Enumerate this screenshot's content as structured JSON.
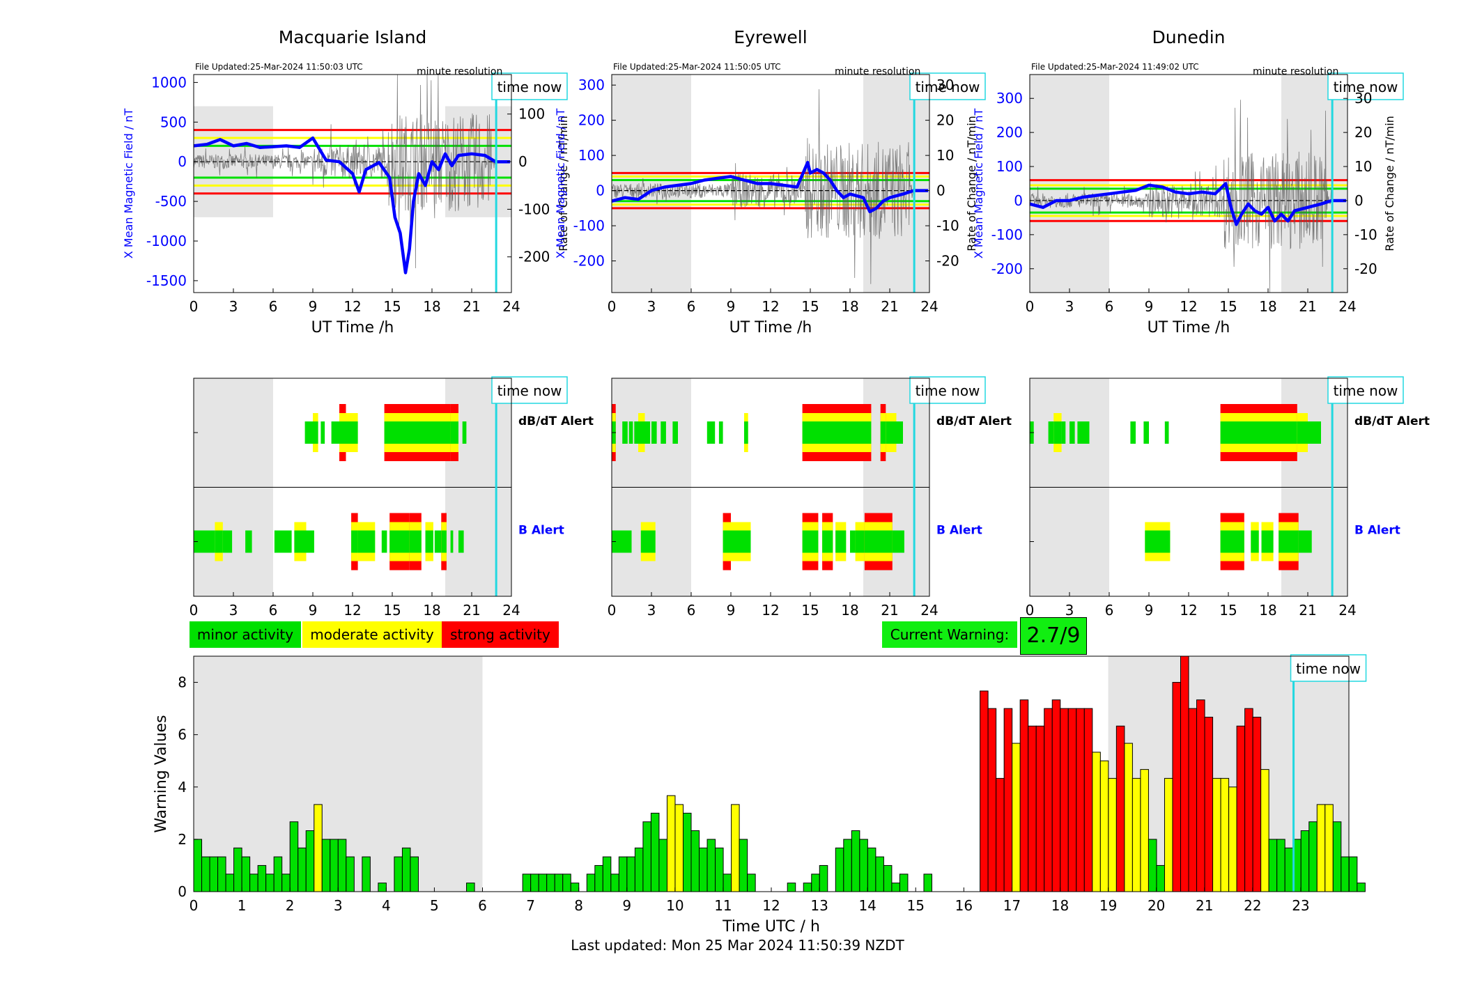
{
  "colors": {
    "minor": "#00e000",
    "moderate": "#ffff00",
    "strong": "#ff0000",
    "night": "#e5e5e5",
    "x_axis": "#0000ff",
    "time_now": "#22d8e0",
    "warning_box": "#11ee11"
  },
  "legend": {
    "minor": "minor activity",
    "moderate": "moderate activity",
    "strong": "strong activity"
  },
  "current_warning": {
    "label": "Current Warning:",
    "value": "2.7/9"
  },
  "footer": "Last updated: Mon 25 Mar 2024 11:50:39 NZDT",
  "chart_data": [
    {
      "type": "line",
      "station": "Macquarie Island",
      "file_updated": "File Updated:25-Mar-2024 11:50:03 UTC",
      "resolution": "minute resolution",
      "time_now_label": "time now",
      "time_now_hour": 22.85,
      "xlabel": "UT Time /h",
      "ylabel_left": "X Mean Magnetic Field / nT",
      "ylabel_right": "Rate of Change / nT/min",
      "xlim": [
        0,
        24
      ],
      "ylim_left": [
        -1650,
        1100
      ],
      "ylim_right": [
        -275,
        183
      ],
      "xticks": [
        0,
        3,
        6,
        9,
        12,
        15,
        18,
        21,
        24
      ],
      "yticks_left": [
        -1500,
        -1000,
        -500,
        0,
        500,
        1000
      ],
      "yticks_right": [
        -200,
        -100,
        0,
        100
      ],
      "night_left": [
        0,
        6
      ],
      "night_right": [
        19,
        24
      ],
      "night_y": [
        -700,
        700
      ],
      "thresholds": [
        {
          "level": "strong",
          "value": 400
        },
        {
          "level": "moderate",
          "value": 300
        },
        {
          "level": "minor",
          "value": 200
        }
      ],
      "x_mean_hourly_x": [
        0,
        1,
        2,
        3,
        4,
        5,
        6,
        7,
        8,
        9,
        10,
        11,
        12,
        12.5,
        13,
        14,
        14.8,
        15.2,
        15.6,
        16,
        16.3,
        16.6,
        17,
        17.5,
        18,
        18.5,
        19,
        19.5,
        20,
        21,
        22,
        22.8,
        23.9
      ],
      "x_mean_hourly_y": [
        200,
        220,
        280,
        200,
        230,
        180,
        190,
        200,
        180,
        300,
        20,
        0,
        -150,
        -380,
        -100,
        -10,
        -200,
        -700,
        -900,
        -1400,
        -1100,
        -500,
        -150,
        -300,
        0,
        -100,
        100,
        -50,
        80,
        100,
        80,
        0,
        0
      ]
    },
    {
      "type": "line",
      "station": "Eyrewell",
      "file_updated": "File Updated:25-Mar-2024 11:50:05 UTC",
      "resolution": "minute resolution",
      "time_now_label": "time now",
      "time_now_hour": 22.85,
      "xlabel": "UT Time /h",
      "ylabel_left": "X Mean Magnetic Field / nT",
      "ylabel_right": "Rate of Change / nT/min",
      "xlim": [
        0,
        24
      ],
      "ylim_left": [
        -290,
        330
      ],
      "ylim_right": [
        -29,
        33
      ],
      "xticks": [
        0,
        3,
        6,
        9,
        12,
        15,
        18,
        21,
        24
      ],
      "yticks_left": [
        -200,
        -100,
        0,
        100,
        200,
        300
      ],
      "yticks_right": [
        -20,
        -10,
        0,
        10,
        20,
        30
      ],
      "night_left": [
        0,
        6
      ],
      "night_right": [
        19,
        24
      ],
      "night_y": [
        -290,
        330
      ],
      "thresholds": [
        {
          "level": "strong",
          "value": 50
        },
        {
          "level": "moderate",
          "value": 40
        },
        {
          "level": "minor",
          "value": 30
        }
      ],
      "x_mean_hourly_x": [
        0,
        1,
        2,
        3,
        4,
        5,
        6,
        7,
        8,
        9,
        10,
        11,
        12,
        13,
        14,
        14.8,
        15,
        15.5,
        16,
        16.5,
        17,
        17.5,
        18,
        19,
        19.5,
        20,
        20.5,
        21,
        22,
        22.8,
        23.9
      ],
      "x_mean_hourly_y": [
        -30,
        -20,
        -25,
        0,
        10,
        15,
        20,
        30,
        35,
        40,
        30,
        20,
        20,
        15,
        10,
        80,
        50,
        60,
        50,
        30,
        0,
        -20,
        -10,
        -20,
        -60,
        -50,
        -30,
        -20,
        -10,
        0,
        0
      ]
    },
    {
      "type": "line",
      "station": "Dunedin",
      "file_updated": "File Updated:25-Mar-2024 11:49:02 UTC",
      "resolution": "minute resolution",
      "time_now_label": "time now",
      "time_now_hour": 22.85,
      "xlabel": "UT Time /h",
      "ylabel_left": "X Mean Magnetic Field / nT",
      "ylabel_right": "Rate of Change / nT/min",
      "xlim": [
        0,
        24
      ],
      "ylim_left": [
        -270,
        370
      ],
      "ylim_right": [
        -27,
        37
      ],
      "xticks": [
        0,
        3,
        6,
        9,
        12,
        15,
        18,
        21,
        24
      ],
      "yticks_left": [
        -200,
        -100,
        0,
        100,
        200,
        300
      ],
      "yticks_right": [
        -20,
        -10,
        0,
        10,
        20,
        30
      ],
      "night_left": [
        0,
        6
      ],
      "night_right": [
        19,
        24
      ],
      "night_y": [
        -270,
        370
      ],
      "thresholds": [
        {
          "level": "strong",
          "value": 60
        },
        {
          "level": "moderate",
          "value": 45
        },
        {
          "level": "minor",
          "value": 35
        }
      ],
      "x_mean_hourly_x": [
        0,
        1,
        2,
        3,
        4,
        5,
        6,
        7,
        8,
        9,
        10,
        11,
        12,
        13,
        14,
        14.8,
        15.2,
        15.6,
        16,
        16.5,
        17,
        17.5,
        18,
        18.5,
        19,
        19.5,
        20,
        21,
        22,
        22.8,
        23.9
      ],
      "x_mean_hourly_y": [
        -10,
        -20,
        0,
        0,
        10,
        15,
        20,
        25,
        30,
        45,
        40,
        25,
        20,
        25,
        20,
        50,
        -20,
        -70,
        -40,
        -10,
        -30,
        -40,
        -20,
        -60,
        -40,
        -60,
        -30,
        -20,
        -10,
        0,
        0
      ]
    },
    {
      "type": "alert-timeline",
      "station": "Macquarie Island",
      "rows": [
        "dB/dT Alert",
        "B Alert"
      ],
      "time_now_label": "time now",
      "time_now_hour": 22.85,
      "xlim": [
        0,
        24
      ],
      "xticks": [
        0,
        3,
        6,
        9,
        12,
        15,
        18,
        21,
        24
      ],
      "night_left": [
        0,
        6
      ],
      "night_right": [
        19,
        24
      ],
      "dbdt_segments": [
        [
          8.4,
          9.0,
          1
        ],
        [
          9.0,
          9.4,
          2
        ],
        [
          9.6,
          9.9,
          1
        ],
        [
          10.4,
          11.0,
          1
        ],
        [
          11.0,
          11.5,
          3
        ],
        [
          11.5,
          12.4,
          2
        ],
        [
          14.4,
          19.4,
          3
        ],
        [
          19.4,
          20.0,
          3
        ],
        [
          20.3,
          20.6,
          1
        ]
      ],
      "b_segments": [
        [
          0,
          1.6,
          1
        ],
        [
          1.6,
          2.2,
          2
        ],
        [
          2.2,
          2.9,
          1
        ],
        [
          3.9,
          4.4,
          1
        ],
        [
          6.1,
          7.4,
          1
        ],
        [
          7.6,
          8.5,
          2
        ],
        [
          8.5,
          9.1,
          1
        ],
        [
          11.9,
          12.4,
          3
        ],
        [
          12.4,
          13.7,
          2
        ],
        [
          14.2,
          14.6,
          1
        ],
        [
          14.8,
          16.3,
          3
        ],
        [
          16.3,
          17.2,
          3
        ],
        [
          17.5,
          18.1,
          2
        ],
        [
          18.2,
          18.7,
          1
        ],
        [
          18.7,
          19.1,
          3
        ],
        [
          19.4,
          19.6,
          1
        ],
        [
          20.0,
          20.4,
          1
        ]
      ]
    },
    {
      "type": "alert-timeline",
      "station": "Eyrewell",
      "rows": [
        "dB/dT Alert",
        "B Alert"
      ],
      "time_now_label": "time now",
      "time_now_hour": 22.85,
      "xlim": [
        0,
        24
      ],
      "xticks": [
        0,
        3,
        6,
        9,
        12,
        15,
        18,
        21,
        24
      ],
      "night_left": [
        0,
        6
      ],
      "night_right": [
        19,
        24
      ],
      "dbdt_segments": [
        [
          0,
          0.3,
          3
        ],
        [
          0.8,
          1.2,
          1
        ],
        [
          1.3,
          1.6,
          1
        ],
        [
          1.7,
          2.0,
          1
        ],
        [
          2.0,
          2.5,
          2
        ],
        [
          2.5,
          2.9,
          1
        ],
        [
          3.0,
          3.4,
          1
        ],
        [
          3.7,
          4.1,
          1
        ],
        [
          4.6,
          5.0,
          1
        ],
        [
          7.2,
          7.8,
          1
        ],
        [
          8.1,
          8.4,
          1
        ],
        [
          10.0,
          10.3,
          2
        ],
        [
          14.4,
          19.6,
          3
        ],
        [
          20.3,
          20.7,
          3
        ],
        [
          20.7,
          21.5,
          2
        ],
        [
          21.5,
          22.0,
          1
        ]
      ],
      "b_segments": [
        [
          0,
          1.5,
          1
        ],
        [
          2.2,
          3.3,
          2
        ],
        [
          8.4,
          9.0,
          3
        ],
        [
          9.0,
          10.5,
          2
        ],
        [
          14.4,
          15.6,
          3
        ],
        [
          15.9,
          16.7,
          3
        ],
        [
          16.9,
          17.7,
          2
        ],
        [
          18.0,
          18.4,
          1
        ],
        [
          18.4,
          19.1,
          2
        ],
        [
          19.1,
          21.2,
          3
        ],
        [
          21.2,
          22.1,
          1
        ]
      ]
    },
    {
      "type": "alert-timeline",
      "station": "Dunedin",
      "rows": [
        "dB/dT Alert",
        "B Alert"
      ],
      "time_now_label": "time now",
      "time_now_hour": 22.85,
      "xlim": [
        0,
        24
      ],
      "xticks": [
        0,
        3,
        6,
        9,
        12,
        15,
        18,
        21,
        24
      ],
      "night_left": [
        0,
        6
      ],
      "night_right": [
        19,
        24
      ],
      "dbdt_segments": [
        [
          0,
          0.3,
          1
        ],
        [
          1.4,
          1.8,
          1
        ],
        [
          1.8,
          2.4,
          2
        ],
        [
          2.4,
          2.7,
          1
        ],
        [
          3.0,
          3.4,
          1
        ],
        [
          3.6,
          4.5,
          1
        ],
        [
          7.6,
          8.0,
          1
        ],
        [
          8.6,
          9.0,
          1
        ],
        [
          10.2,
          10.5,
          1
        ],
        [
          14.4,
          20.2,
          3
        ],
        [
          20.2,
          21.0,
          2
        ],
        [
          21.0,
          22.0,
          1
        ]
      ],
      "b_segments": [
        [
          8.7,
          10.6,
          2
        ],
        [
          14.4,
          16.2,
          3
        ],
        [
          16.7,
          17.3,
          2
        ],
        [
          17.5,
          18.4,
          2
        ],
        [
          18.8,
          20.3,
          3
        ],
        [
          20.3,
          21.3,
          1
        ]
      ]
    },
    {
      "type": "bar",
      "ylabel": "Warning Values",
      "xlabel": "Time UTC / h",
      "time_now_label": "time now",
      "time_now_hour": 22.85,
      "xlim": [
        0,
        24
      ],
      "ylim": [
        0,
        9
      ],
      "xticks": [
        0,
        1,
        2,
        3,
        4,
        5,
        6,
        7,
        8,
        9,
        10,
        11,
        12,
        13,
        14,
        15,
        16,
        17,
        18,
        19,
        20,
        21,
        22,
        23
      ],
      "yticks": [
        0,
        2,
        4,
        6,
        8
      ],
      "night_left": [
        0,
        6
      ],
      "night_right": [
        19,
        24
      ],
      "bin_hours": 0.1667,
      "values": [
        2.0,
        1.33,
        1.33,
        1.33,
        0.67,
        1.67,
        1.33,
        0.67,
        1.0,
        0.67,
        1.33,
        0.67,
        2.67,
        1.67,
        2.33,
        3.33,
        2.0,
        2.0,
        2.0,
        1.33,
        0,
        1.33,
        0,
        0.33,
        0,
        1.33,
        1.67,
        1.33,
        0,
        0,
        0,
        0,
        0,
        0,
        0.33,
        0,
        0,
        0,
        0,
        0,
        0,
        0.67,
        0.67,
        0.67,
        0.67,
        0.67,
        0.67,
        0.33,
        0,
        0.67,
        1.0,
        1.33,
        0.67,
        1.33,
        1.33,
        1.67,
        2.67,
        3.0,
        2.0,
        3.67,
        3.33,
        3.0,
        2.33,
        1.67,
        2.0,
        1.67,
        0.67,
        3.33,
        2.0,
        0.67,
        0,
        0,
        0,
        0,
        0.33,
        0,
        0.33,
        0.67,
        1.0,
        0,
        1.67,
        2.0,
        2.33,
        2.0,
        1.67,
        1.33,
        1.0,
        0.33,
        0.67,
        0,
        0,
        0.67,
        0,
        0,
        0,
        0,
        0,
        0,
        7.67,
        7.0,
        4.33,
        7.0,
        5.67,
        7.33,
        6.33,
        6.33,
        7.0,
        7.33,
        7.0,
        7.0,
        7.0,
        7.0,
        5.33,
        5.0,
        4.33,
        6.33,
        5.67,
        4.33,
        4.67,
        2.0,
        1.0,
        4.33,
        8.0,
        9.0,
        7.0,
        7.33,
        6.67,
        4.33,
        4.33,
        4.0,
        6.33,
        7.0,
        6.67,
        4.67,
        2.0,
        2.0,
        1.67,
        2.0,
        2.33,
        2.67,
        3.33,
        3.33,
        2.67,
        1.33,
        1.33,
        0.33
      ]
    }
  ]
}
